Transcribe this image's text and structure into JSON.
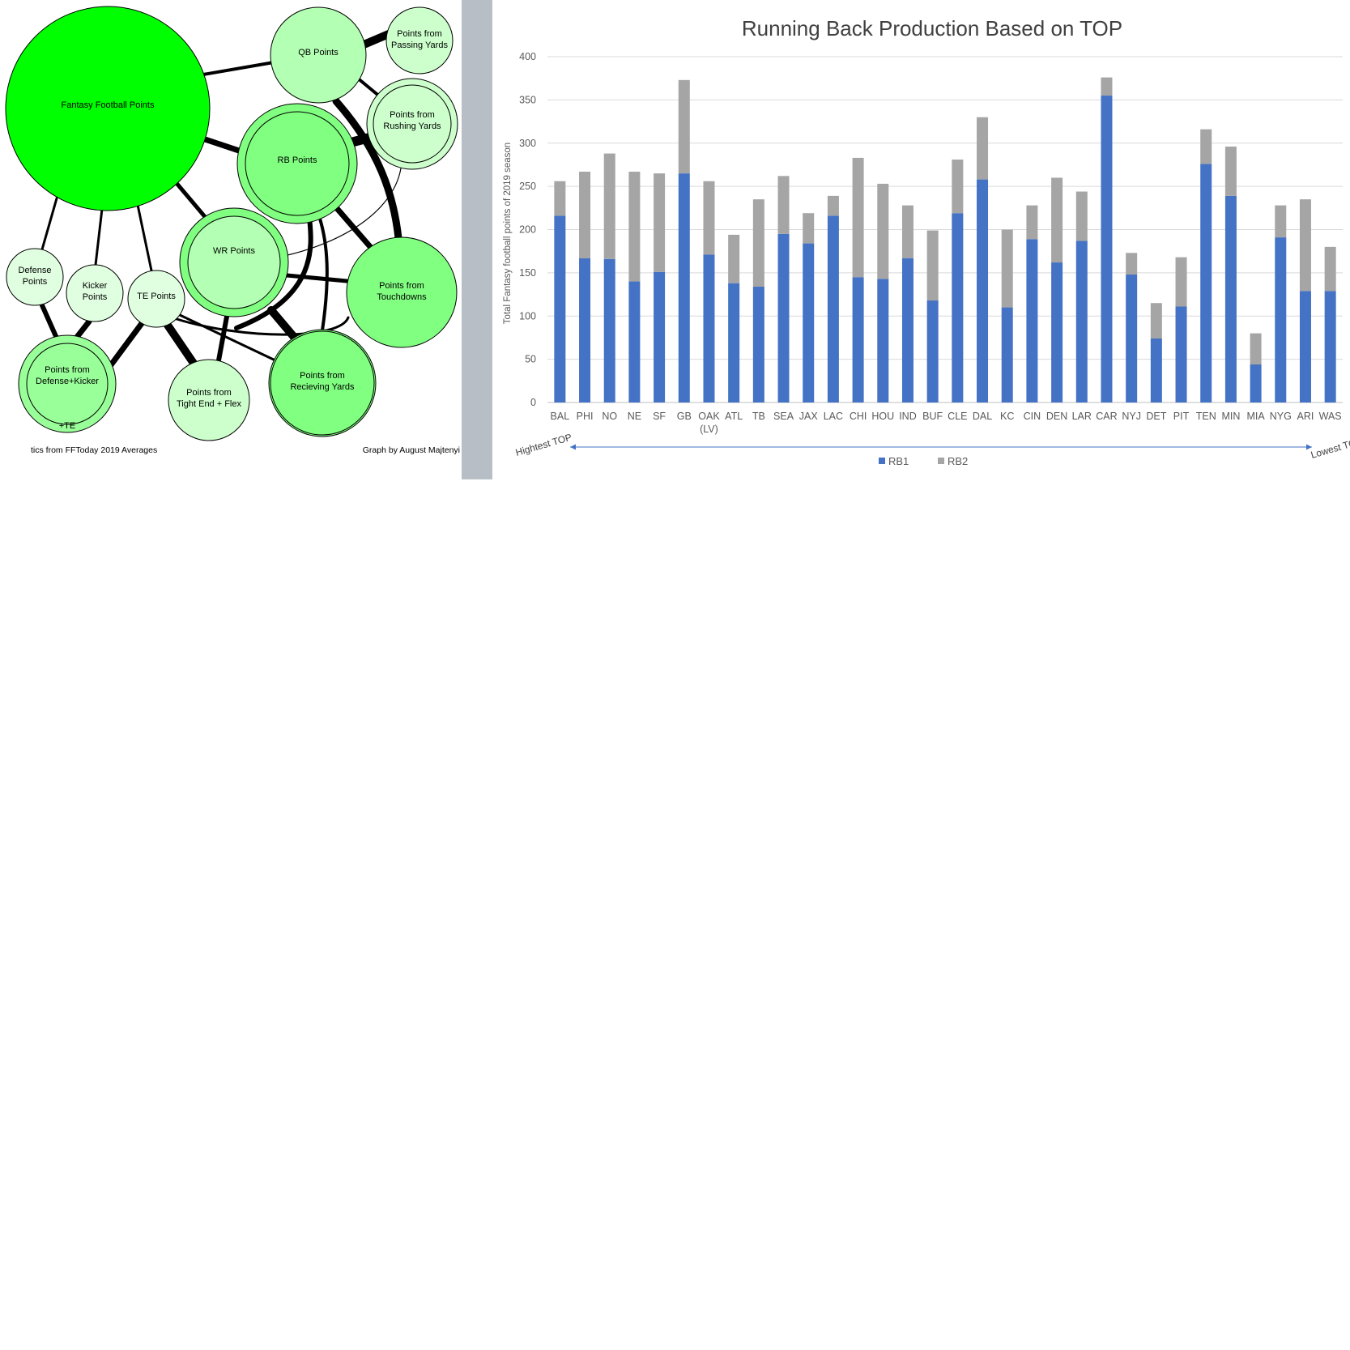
{
  "diagram": {
    "nodes": {
      "fantasy": [
        "Fantasy Football Points"
      ],
      "qb": [
        "QB Points"
      ],
      "passing": [
        "Points from",
        "Passing Yards"
      ],
      "rb": [
        "RB Points"
      ],
      "rushing": [
        "Points from",
        "Rushing Yards"
      ],
      "wr": [
        "WR Points"
      ],
      "touchdowns": [
        "Points from",
        "Touchdowns"
      ],
      "defense": [
        "Defense",
        "Points"
      ],
      "kicker": [
        "Kicker",
        "Points"
      ],
      "te": [
        "TE Points"
      ],
      "defkick": [
        "Points from",
        "Defense+Kicker"
      ],
      "defkick_te": [
        "+TE"
      ],
      "teflex": [
        "Points from",
        "Tight End + Flex"
      ],
      "receiving": [
        "Points from",
        "Recieving Yards"
      ]
    },
    "source_credit": "tics from FFToday 2019 Averages",
    "author_credit": "Graph by August Majtenyi"
  },
  "chart_data": {
    "type": "bar",
    "stacked": true,
    "title": "Running Back Production Based on TOP",
    "ylabel": "Total Fantasy football points of 2019 season",
    "xlabel": "",
    "ylim": [
      0,
      400
    ],
    "yticks": [
      0,
      50,
      100,
      150,
      200,
      250,
      300,
      350,
      400
    ],
    "grid": true,
    "legend_position": "bottom",
    "categories": [
      "BAL",
      "PHI",
      "NO",
      "NE",
      "SF",
      "GB",
      "OAK\n(LV)",
      "ATL",
      "TB",
      "SEA",
      "JAX",
      "LAC",
      "CHI",
      "HOU",
      "IND",
      "BUF",
      "CLE",
      "DAL",
      "KC",
      "CIN",
      "DEN",
      "LAR",
      "CAR",
      "NYJ",
      "DET",
      "PIT",
      "TEN",
      "MIN",
      "MIA",
      "NYG",
      "ARI",
      "WAS"
    ],
    "series": [
      {
        "name": "RB1",
        "color": "#4472c4",
        "values": [
          216,
          167,
          166,
          140,
          151,
          265,
          171,
          138,
          134,
          195,
          184,
          216,
          145,
          143,
          167,
          118,
          219,
          258,
          110,
          189,
          162,
          187,
          355,
          148,
          74,
          111,
          276,
          239,
          44,
          191,
          129,
          129
        ]
      },
      {
        "name": "RB2",
        "color": "#a5a5a5",
        "values": [
          40,
          100,
          122,
          127,
          114,
          108,
          85,
          56,
          101,
          67,
          35,
          23,
          138,
          110,
          61,
          81,
          62,
          72,
          90,
          39,
          98,
          57,
          21,
          25,
          41,
          57,
          40,
          57,
          36,
          37,
          106,
          51
        ]
      }
    ],
    "annotations": {
      "left": "Hightest TOP",
      "right": "Lowest TOP"
    }
  }
}
